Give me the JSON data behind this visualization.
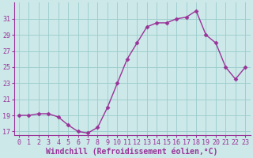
{
  "x": [
    0,
    1,
    2,
    3,
    4,
    5,
    6,
    7,
    8,
    9,
    10,
    11,
    12,
    13,
    14,
    15,
    16,
    17,
    18,
    19,
    20,
    21,
    22,
    23
  ],
  "y": [
    19.0,
    19.0,
    19.2,
    19.2,
    18.8,
    17.8,
    17.0,
    16.8,
    17.5,
    20.0,
    23.0,
    26.0,
    28.0,
    30.0,
    30.5,
    30.5,
    31.0,
    31.2,
    32.0,
    29.0,
    28.0,
    25.0,
    23.5,
    25.0
  ],
  "line_color": "#993399",
  "marker": "D",
  "marker_size": 2.5,
  "bg_color": "#cce8e8",
  "grid_color": "#99cccc",
  "xlabel": "Windchill (Refroidissement éolien,°C)",
  "xlabel_color": "#993399",
  "ylim": [
    16.5,
    33.0
  ],
  "yticks": [
    17,
    19,
    21,
    23,
    25,
    27,
    29,
    31
  ],
  "xlim": [
    -0.5,
    23.5
  ],
  "xticks": [
    0,
    1,
    2,
    3,
    4,
    5,
    6,
    7,
    8,
    9,
    10,
    11,
    12,
    13,
    14,
    15,
    16,
    17,
    18,
    19,
    20,
    21,
    22,
    23
  ],
  "tick_color": "#993399",
  "tick_fontsize": 6.0,
  "xlabel_fontsize": 7.0,
  "linewidth": 1.0
}
